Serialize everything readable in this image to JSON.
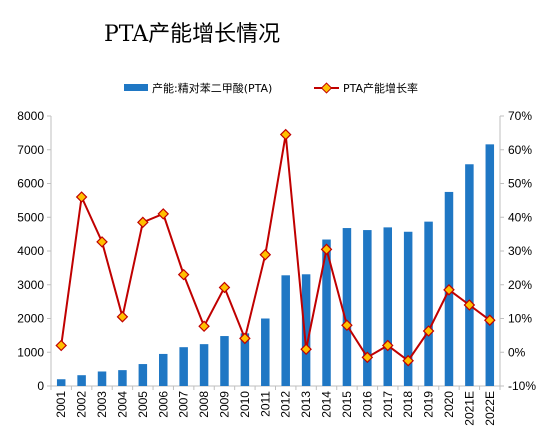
{
  "chart_data": {
    "type": "bar",
    "title": "PTA产能增长情况",
    "categories": [
      "2001",
      "2002",
      "2003",
      "2004",
      "2005",
      "2006",
      "2007",
      "2008",
      "2009",
      "2010",
      "2011",
      "2012",
      "2013",
      "2014",
      "2015",
      "2016",
      "2017",
      "2018",
      "2019",
      "2020",
      "2021E",
      "2022E"
    ],
    "series": [
      {
        "name": "产能:精对苯二甲酸(PTA)",
        "type": "bar",
        "axis": "left",
        "color": "#1f77c4",
        "values": [
          200,
          320,
          430,
          470,
          650,
          950,
          1150,
          1240,
          1480,
          1560,
          2000,
          3280,
          3310,
          4340,
          4680,
          4620,
          4700,
          4570,
          4870,
          5750,
          6570,
          7160
        ]
      },
      {
        "name": "PTA产能增长率",
        "type": "line",
        "axis": "right",
        "color": "#c00000",
        "marker_color": "#ffc000",
        "values": [
          2.0,
          46.0,
          32.7,
          10.5,
          38.5,
          41.0,
          23.0,
          7.7,
          19.2,
          4.1,
          28.9,
          64.5,
          0.9,
          30.5,
          8.0,
          -1.5,
          2.0,
          -2.5,
          6.3,
          18.5,
          14.0,
          9.5
        ]
      }
    ],
    "y_left": {
      "min": 0,
      "max": 8000,
      "ticks": [
        "0",
        "1000",
        "2000",
        "3000",
        "4000",
        "5000",
        "6000",
        "7000",
        "8000"
      ]
    },
    "y_right": {
      "min": -10,
      "max": 70,
      "ticks": [
        "-10%",
        "0%",
        "10%",
        "20%",
        "30%",
        "40%",
        "50%",
        "60%",
        "70%"
      ]
    },
    "legend_position": "top",
    "grid": false
  }
}
